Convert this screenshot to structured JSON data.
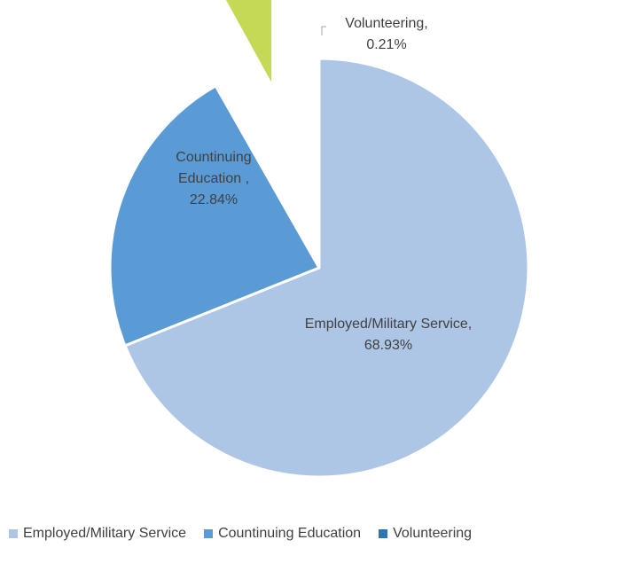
{
  "chart_data": {
    "type": "pie",
    "title": "",
    "categories": [
      "Employed/Military Service",
      "Countinuing Education",
      "Volunteering",
      ""
    ],
    "values": [
      68.93,
      22.84,
      0.21,
      8.02
    ],
    "colors": [
      "#aec6e6",
      "#5b9bd5",
      "#2e75b6",
      "#c6d957"
    ],
    "data_labels": [
      [
        "Employed/Military Service,",
        "68.93%"
      ],
      [
        "Countinuing",
        "Education ,",
        "22.84%"
      ],
      [
        "Volunteering,",
        "0.21%"
      ],
      []
    ],
    "legend": {
      "position": "bottom",
      "entries": [
        "Employed/Military Service",
        "Countinuing Education",
        "Volunteering"
      ]
    }
  }
}
